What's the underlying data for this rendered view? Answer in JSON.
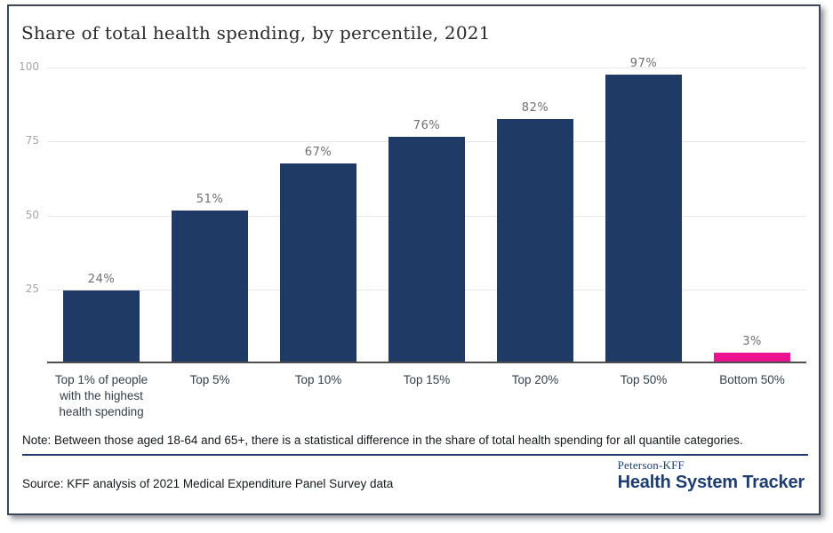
{
  "title": "Share of total health spending, by percentile, 2021",
  "chart_data": {
    "type": "bar",
    "title": "Share of total health spending, by percentile, 2021",
    "categories": [
      "Top 1% of people with the highest health spending",
      "Top 5%",
      "Top 10%",
      "Top 15%",
      "Top 20%",
      "Top 50%",
      "Bottom 50%"
    ],
    "values": [
      24,
      51,
      67,
      76,
      82,
      97,
      3
    ],
    "value_labels": [
      "24%",
      "51%",
      "67%",
      "76%",
      "82%",
      "97%",
      "3%"
    ],
    "yticks": [
      100,
      75,
      50,
      25
    ],
    "ylim": [
      0,
      100
    ],
    "grid": true,
    "legend": "none",
    "bar_color": "#1f3a64",
    "highlight_color": "#ec118e",
    "highlight_index": 6,
    "xlabel": "",
    "ylabel": ""
  },
  "note": "Note: Between those aged 18-64 and 65+, there is a statistical difference in the share of total health spending for all quantile categories.",
  "source": "Source: KFF analysis of 2021 Medical Expenditure Panel Survey data",
  "logo": {
    "brand_top": "Peterson-KFF",
    "brand_bottom": "Health System Tracker",
    "color": "#1e3c6e"
  },
  "colors": {
    "gridline": "#e7e7e7",
    "axis_baseline": "#4d4d4d",
    "y_tick_label": "#a6a6a6",
    "value_label": "#6f6f6f",
    "category_label": "#333e48",
    "card_border": "#3d4654"
  }
}
